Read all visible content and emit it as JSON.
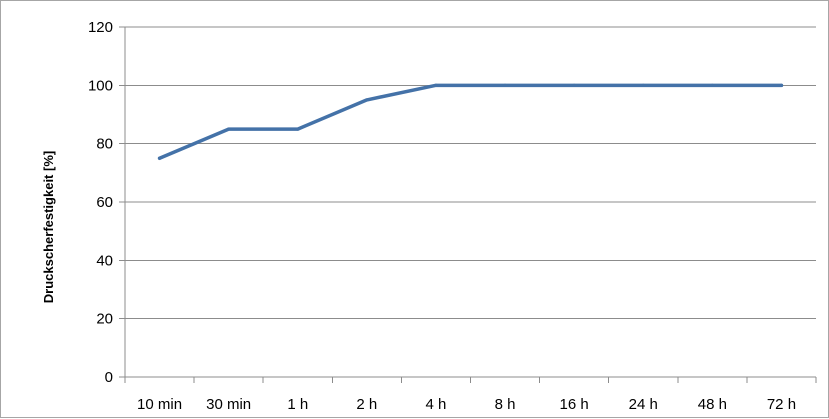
{
  "chart_data": {
    "type": "line",
    "title": "",
    "xlabel": "",
    "ylabel": "Druckscherfestigkeit [%]",
    "categories": [
      "10 min",
      "30 min",
      "1 h",
      "2 h",
      "4 h",
      "8 h",
      "16 h",
      "24 h",
      "48 h",
      "72 h"
    ],
    "series": [
      {
        "name": "",
        "values": [
          75,
          85,
          85,
          95,
          100,
          100,
          100,
          100,
          100,
          100
        ]
      }
    ],
    "ylim": [
      0,
      120
    ],
    "yticks": [
      0,
      20,
      40,
      60,
      80,
      100,
      120
    ],
    "grid": true,
    "legend": "none",
    "colors": {
      "line": "#4472a8",
      "grid": "#8c8c8c",
      "axis": "#8c8c8c"
    }
  }
}
